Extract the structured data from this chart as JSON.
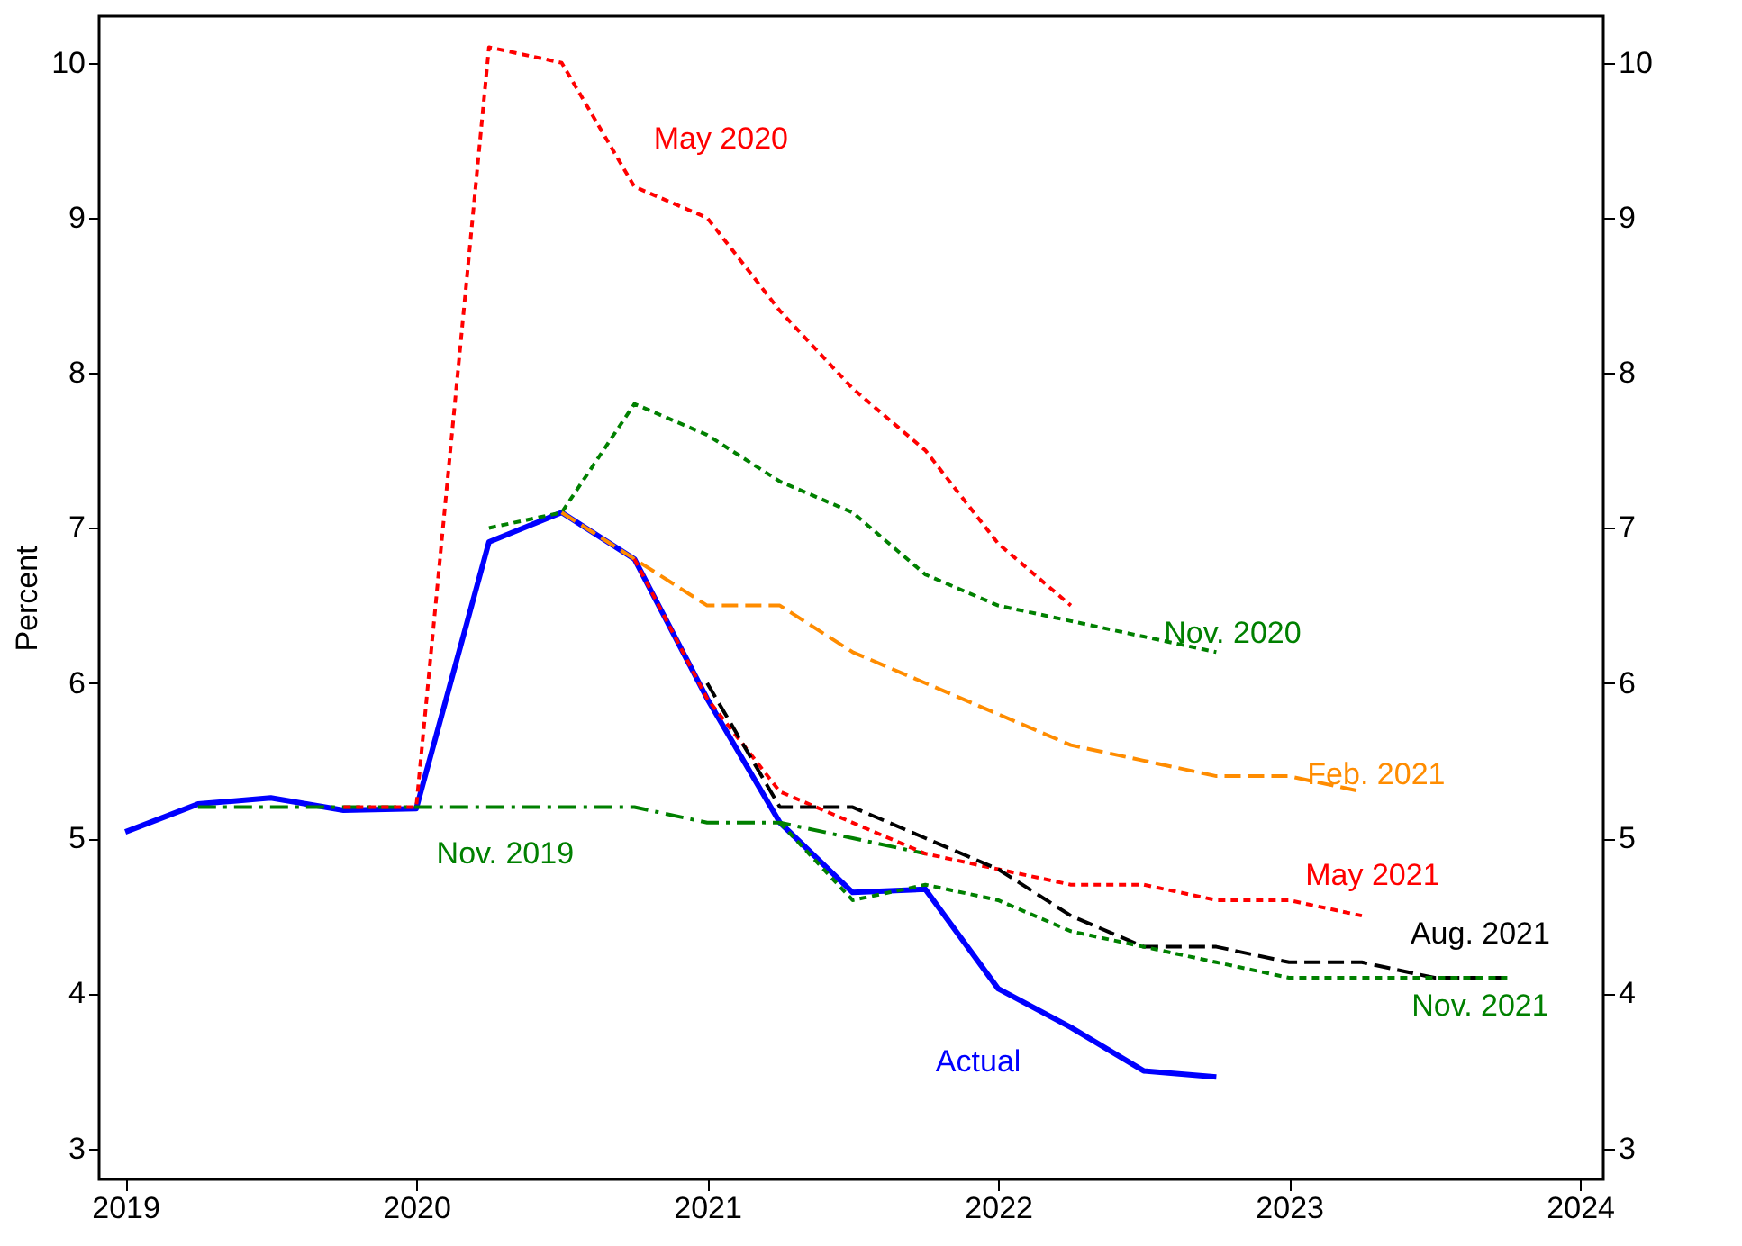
{
  "chart_data": {
    "type": "line",
    "ylabel": "Percent",
    "xlim": [
      2018.91,
      2024.08
    ],
    "xticks": [
      2019,
      2020,
      2021,
      2022,
      2023,
      2024
    ],
    "ylim": [
      2.8,
      10.3
    ],
    "yticks": [
      3,
      4,
      5,
      6,
      7,
      8,
      9,
      10
    ],
    "y2lim": [
      2.8,
      10.3
    ],
    "y2ticks": [
      3,
      4,
      5,
      6,
      7,
      8,
      9,
      10
    ],
    "grid": false,
    "legend": false,
    "series": [
      {
        "name": "Actual",
        "color": "#0000ff",
        "line_style": "solid",
        "x": [
          2019,
          2019.25,
          2019.5,
          2019.75,
          2020,
          2020.25,
          2020.5,
          2020.75,
          2021,
          2021.25,
          2021.5,
          2021.75,
          2022,
          2022.25,
          2022.5,
          2022.75
        ],
        "values": [
          5.04,
          5.22,
          5.26,
          5.18,
          5.19,
          6.91,
          7.1,
          6.8,
          5.9,
          5.1,
          4.65,
          4.67,
          4.03,
          3.78,
          3.5,
          3.46
        ]
      },
      {
        "name": "Nov. 2019",
        "color": "#008000",
        "line_style": "dashdot",
        "x": [
          2019.25,
          2019.5,
          2019.75,
          2020,
          2020.25,
          2020.5,
          2020.75,
          2021,
          2021.25,
          2021.5,
          2021.75
        ],
        "values": [
          5.2,
          5.2,
          5.2,
          5.2,
          5.2,
          5.2,
          5.2,
          5.1,
          5.1,
          5.0,
          4.9
        ]
      },
      {
        "name": "May 2020",
        "color": "#ff0000",
        "line_style": "dotted",
        "x": [
          2019.75,
          2020,
          2020.25,
          2020.5,
          2020.75,
          2021,
          2021.25,
          2021.5,
          2021.75,
          2022,
          2022.25
        ],
        "values": [
          5.2,
          5.2,
          10.1,
          10.0,
          9.2,
          9.0,
          8.4,
          7.9,
          7.5,
          6.9,
          6.5
        ]
      },
      {
        "name": "Nov. 2020",
        "color": "#008000",
        "line_style": "dotted",
        "x": [
          2020.25,
          2020.5,
          2020.75,
          2021,
          2021.25,
          2021.5,
          2021.75,
          2022,
          2022.25,
          2022.5,
          2022.75
        ],
        "values": [
          7.0,
          7.1,
          7.8,
          7.6,
          7.3,
          7.1,
          6.7,
          6.5,
          6.4,
          6.3,
          6.2
        ]
      },
      {
        "name": "Feb. 2021",
        "color": "#ff8c00",
        "line_style": "dashed",
        "x": [
          2020.5,
          2020.75,
          2021,
          2021.25,
          2021.5,
          2021.75,
          2022,
          2022.25,
          2022.5,
          2022.75,
          2023,
          2023.25
        ],
        "values": [
          7.1,
          6.8,
          6.5,
          6.5,
          6.2,
          6.0,
          5.8,
          5.6,
          5.5,
          5.4,
          5.4,
          5.3
        ]
      },
      {
        "name": "May 2021",
        "color": "#ff0000",
        "line_style": "dotted",
        "x": [
          2020.75,
          2021,
          2021.25,
          2021.5,
          2021.75,
          2022,
          2022.25,
          2022.5,
          2022.75,
          2023,
          2023.25
        ],
        "values": [
          6.8,
          5.9,
          5.3,
          5.1,
          4.9,
          4.8,
          4.7,
          4.7,
          4.6,
          4.6,
          4.5
        ]
      },
      {
        "name": "Aug. 2021",
        "color": "#000000",
        "line_style": "dashed",
        "x": [
          2021,
          2021.25,
          2021.5,
          2021.75,
          2022,
          2022.25,
          2022.5,
          2022.75,
          2023,
          2023.25,
          2023.5,
          2023.75
        ],
        "values": [
          6.0,
          5.2,
          5.2,
          5.0,
          4.8,
          4.5,
          4.3,
          4.3,
          4.2,
          4.2,
          4.1,
          4.1
        ]
      },
      {
        "name": "Nov. 2021",
        "color": "#008000",
        "line_style": "dotted",
        "x": [
          2021.25,
          2021.5,
          2021.75,
          2022,
          2022.25,
          2022.5,
          2022.75,
          2023,
          2023.25,
          2023.5,
          2023.75
        ],
        "values": [
          5.1,
          4.6,
          4.7,
          4.6,
          4.4,
          4.3,
          4.2,
          4.1,
          4.1,
          4.1,
          4.1
        ]
      }
    ]
  }
}
